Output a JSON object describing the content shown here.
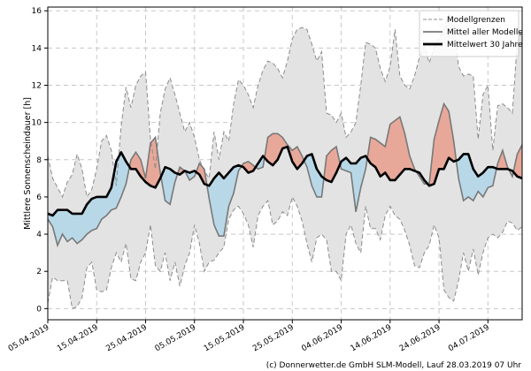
{
  "chart_data": {
    "type": "line",
    "ylabel": "Mittlere Sonnenscheindauer [h]",
    "ylim": [
      -0.6,
      16.2
    ],
    "yticks": [
      0,
      2,
      4,
      6,
      8,
      10,
      12,
      14,
      16
    ],
    "xdomain": [
      0,
      97
    ],
    "xtick_labels": [
      {
        "x": 0,
        "label": "05.04.2019"
      },
      {
        "x": 10,
        "label": "15.04.2019"
      },
      {
        "x": 20,
        "label": "25.04.2019"
      },
      {
        "x": 30,
        "label": "05.05.2019"
      },
      {
        "x": 40,
        "label": "15.05.2019"
      },
      {
        "x": 50,
        "label": "25.05.2019"
      },
      {
        "x": 60,
        "label": "04.06.2019"
      },
      {
        "x": 70,
        "label": "14.06.2019"
      },
      {
        "x": 80,
        "label": "24.06.2019"
      },
      {
        "x": 90,
        "label": "04.07.2019"
      }
    ],
    "legend": {
      "position": "top-right",
      "entries": [
        "Modellgrenzen",
        "Mittel aller Modelle",
        "Mittelwert 30 Jahre"
      ]
    },
    "colors": {
      "band_fill": "#e3e3e3",
      "band_line": "#8c8c8c",
      "model_mean": "#787878",
      "climate_mean": "#000000",
      "above_fill": "#e8a899",
      "below_fill": "#b8d8e8"
    },
    "series": [
      {
        "name": "Modellgrenzen (oben)",
        "values": [
          8.2,
          7.0,
          6.5,
          6.0,
          6.8,
          7.2,
          8.3,
          7.5,
          6.0,
          6.4,
          7.5,
          9.0,
          9.3,
          8.5,
          6.6,
          9.8,
          11.9,
          10.8,
          12.0,
          12.5,
          12.7,
          9.1,
          7.5,
          10.5,
          11.8,
          12.4,
          11.5,
          10.5,
          9.5,
          10.0,
          9.2,
          8.0,
          7.4,
          7.0,
          9.5,
          8.0,
          9.5,
          9.0,
          11.0,
          12.3,
          12.0,
          11.5,
          10.8,
          12.0,
          12.8,
          13.3,
          13.2,
          12.9,
          12.4,
          13.3,
          14.5,
          15.0,
          15.1,
          15.0,
          14.2,
          13.3,
          13.8,
          10.5,
          10.4,
          10.0,
          10.5,
          9.2,
          9.5,
          10.0,
          12.0,
          14.3,
          14.2,
          14.0,
          12.9,
          12.2,
          13.0,
          15.0,
          12.5,
          12.0,
          11.8,
          12.5,
          13.5,
          14.1,
          13.2,
          14.0,
          14.5,
          15.0,
          15.8,
          15.4,
          13.0,
          12.5,
          12.6,
          12.5,
          9.1,
          11.5,
          12.0,
          8.5,
          10.9,
          11.0,
          10.8,
          10.5,
          14.3,
          15.0
        ]
      },
      {
        "name": "Modellgrenzen (unten)",
        "values": [
          0.3,
          1.7,
          1.5,
          1.5,
          1.5,
          0.0,
          0.1,
          0.6,
          2.2,
          2.5,
          1.0,
          0.9,
          1.0,
          2.2,
          3.0,
          2.5,
          3.5,
          1.6,
          1.5,
          2.5,
          3.0,
          4.5,
          2.3,
          2.0,
          3.0,
          1.5,
          2.5,
          1.2,
          2.3,
          3.0,
          4.5,
          3.5,
          2.0,
          2.5,
          2.6,
          3.0,
          3.3,
          4.8,
          5.3,
          5.5,
          5.1,
          4.5,
          3.3,
          5.0,
          5.5,
          5.8,
          4.5,
          4.7,
          5.2,
          5.0,
          6.0,
          5.5,
          4.7,
          3.5,
          2.5,
          3.8,
          4.0,
          3.7,
          2.0,
          2.0,
          1.5,
          4.0,
          4.5,
          3.5,
          3.0,
          5.5,
          4.3,
          4.3,
          3.7,
          5.0,
          5.5,
          5.0,
          4.8,
          4.2,
          3.4,
          2.3,
          2.2,
          3.0,
          3.4,
          4.5,
          3.8,
          1.0,
          0.6,
          0.4,
          1.5,
          3.0,
          2.0,
          3.2,
          1.8,
          3.0,
          3.8,
          4.0,
          3.8,
          4.1,
          4.7,
          4.6,
          4.2,
          4.4
        ]
      },
      {
        "name": "Mittel aller Modelle",
        "values": [
          4.8,
          4.4,
          3.4,
          4.0,
          3.6,
          3.8,
          3.5,
          3.7,
          4.0,
          4.2,
          4.3,
          4.8,
          5.0,
          5.3,
          5.4,
          6.0,
          6.7,
          8.0,
          8.4,
          8.0,
          7.0,
          8.9,
          9.2,
          7.3,
          5.8,
          5.6,
          6.8,
          7.6,
          7.4,
          6.9,
          7.1,
          7.8,
          7.5,
          5.9,
          4.5,
          3.9,
          3.9,
          5.5,
          6.2,
          7.4,
          7.8,
          7.9,
          7.7,
          7.5,
          7.6,
          9.2,
          9.4,
          9.4,
          9.2,
          8.8,
          8.5,
          8.7,
          8.2,
          7.6,
          6.6,
          6.0,
          6.0,
          8.2,
          8.5,
          8.7,
          7.5,
          7.4,
          7.3,
          5.2,
          6.5,
          7.5,
          9.2,
          9.1,
          8.9,
          8.7,
          9.9,
          10.1,
          10.3,
          9.4,
          8.2,
          7.5,
          7.1,
          6.7,
          6.7,
          9.1,
          10.1,
          11.0,
          10.6,
          9.0,
          7.0,
          5.8,
          6.0,
          5.8,
          6.3,
          6.0,
          6.5,
          6.6,
          7.8,
          8.5,
          7.6,
          7.1,
          8.3,
          8.8
        ]
      },
      {
        "name": "Mittelwert 30 Jahre",
        "values": [
          5.1,
          5.0,
          5.3,
          5.3,
          5.3,
          5.1,
          5.1,
          5.1,
          5.6,
          5.9,
          6.0,
          6.0,
          6.0,
          6.5,
          7.9,
          8.4,
          7.9,
          7.5,
          7.5,
          7.1,
          6.8,
          6.6,
          6.5,
          7.0,
          7.6,
          7.5,
          7.3,
          7.2,
          7.4,
          7.3,
          7.4,
          7.2,
          6.7,
          6.6,
          7.0,
          7.3,
          7.0,
          7.3,
          7.6,
          7.7,
          7.6,
          7.3,
          7.4,
          7.8,
          8.2,
          7.9,
          7.7,
          8.0,
          8.6,
          8.7,
          7.9,
          7.5,
          7.8,
          8.2,
          8.3,
          7.5,
          7.1,
          6.9,
          6.8,
          7.3,
          7.9,
          8.1,
          7.8,
          7.8,
          8.1,
          8.2,
          7.8,
          7.6,
          7.1,
          7.3,
          6.9,
          6.9,
          7.2,
          7.5,
          7.5,
          7.4,
          7.3,
          6.9,
          6.6,
          6.7,
          7.5,
          7.5,
          8.1,
          7.9,
          8.0,
          8.3,
          8.3,
          7.5,
          7.1,
          7.3,
          7.6,
          7.6,
          7.5,
          7.5,
          7.5,
          7.4,
          7.1,
          7.0
        ]
      }
    ]
  },
  "credit": "(c) Donnerwetter.de GmbH SLM-Modell, Lauf 28.03.2019 07 Uhr"
}
